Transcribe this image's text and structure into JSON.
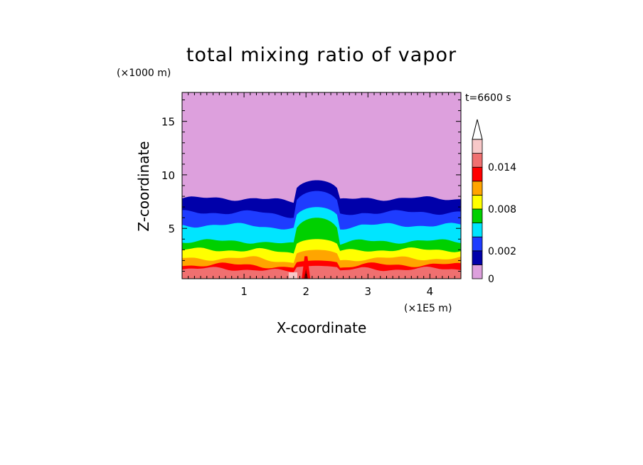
{
  "chart_data": {
    "type": "heatmap",
    "title": "total mixing ratio of vapor",
    "time_label": "t=6600 s",
    "xlabel": "X-coordinate",
    "ylabel": "Z-coordinate",
    "x_unit": "(×1E5 m)",
    "y_unit": "(×1000 m)",
    "xlim": [
      0,
      4.5
    ],
    "ylim": [
      0.3,
      17.7
    ],
    "x_ticks": [
      1,
      2,
      3,
      4
    ],
    "y_ticks": [
      5,
      10,
      15
    ],
    "x_tick_labels": [
      "1",
      "2",
      "3",
      "4"
    ],
    "y_tick_labels": [
      "5",
      "10",
      "15"
    ],
    "grid": false,
    "colorbar": {
      "levels": [
        0,
        0.001,
        0.002,
        0.004,
        0.006,
        0.008,
        0.01,
        0.012,
        0.014,
        0.016
      ],
      "colors": [
        "#dda0dd",
        "#0000aa",
        "#1e3cff",
        "#00e5ff",
        "#00d000",
        "#ffff00",
        "#ffa500",
        "#ff0000",
        "#f07070",
        "#f8c8c8"
      ],
      "tick_labels": [
        {
          "value": 0,
          "label": "0"
        },
        {
          "value": 0.002,
          "label": "0.002"
        },
        {
          "value": 0.008,
          "label": "0.008"
        },
        {
          "value": 0.014,
          "label": "0.014"
        }
      ],
      "extend": "max"
    },
    "layers": [
      {
        "level": 0.001,
        "color": "#0000aa",
        "z_top": 7.8,
        "cloud_top": 9.5
      },
      {
        "level": 0.002,
        "color": "#1e3cff",
        "z_top": 6.5,
        "cloud_top": 8.5
      },
      {
        "level": 0.004,
        "color": "#00e5ff",
        "z_top": 5.3,
        "cloud_top": 7.0
      },
      {
        "level": 0.006,
        "color": "#00d000",
        "z_top": 3.8,
        "cloud_top": 6.0
      },
      {
        "level": 0.008,
        "color": "#ffff00",
        "z_top": 3.0,
        "cloud_top": 4.0
      },
      {
        "level": 0.01,
        "color": "#ffa500",
        "z_top": 2.2,
        "cloud_top": 3.0
      },
      {
        "level": 0.012,
        "color": "#ff0000",
        "z_top": 1.6,
        "cloud_top": 2.0
      },
      {
        "level": 0.014,
        "color": "#f07070",
        "z_top": 1.2,
        "cloud_top": 1.5
      }
    ],
    "background_color": "#dda0dd",
    "cloud_x_range": [
      1.8,
      2.55
    ]
  }
}
